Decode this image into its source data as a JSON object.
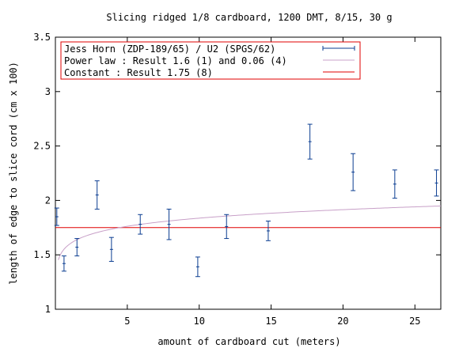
{
  "chart_data": {
    "type": "scatter",
    "title": "Slicing ridged 1/8 cardboard, 1200 DMT, 8/15, 30 g",
    "xlabel": "amount of cardboard cut (meters)",
    "ylabel": "length of edge to slice cord (cm x 100)",
    "xlim": [
      0,
      26.8
    ],
    "ylim": [
      1,
      3.5
    ],
    "xticks": [
      5,
      10,
      15,
      20,
      25
    ],
    "yticks": [
      1,
      1.5,
      2,
      2.5,
      3,
      3.5
    ],
    "xtick_labels": [
      "5",
      "10",
      "15",
      "20",
      "25"
    ],
    "ytick_labels": [
      "1",
      "1.5",
      "2",
      "2.5",
      "3",
      "3.5"
    ],
    "grid": false,
    "legend_position": "top-left",
    "series": [
      {
        "name": "Jess Horn (ZDP-189/65) / U2 (SPGS/62)",
        "kind": "errorbars",
        "color": "#0b3d91",
        "points": [
          {
            "x": 0.1,
            "y": 1.85,
            "yerr": 0.08
          },
          {
            "x": 0.6,
            "y": 1.42,
            "yerr": 0.07
          },
          {
            "x": 1.5,
            "y": 1.57,
            "yerr": 0.08
          },
          {
            "x": 2.9,
            "y": 2.05,
            "yerr": 0.13
          },
          {
            "x": 3.9,
            "y": 1.55,
            "yerr": 0.11
          },
          {
            "x": 5.9,
            "y": 1.78,
            "yerr": 0.09
          },
          {
            "x": 7.9,
            "y": 1.78,
            "yerr": 0.14
          },
          {
            "x": 9.9,
            "y": 1.39,
            "yerr": 0.09
          },
          {
            "x": 11.9,
            "y": 1.76,
            "yerr": 0.11
          },
          {
            "x": 14.8,
            "y": 1.72,
            "yerr": 0.09
          },
          {
            "x": 17.7,
            "y": 2.54,
            "yerr": 0.16
          },
          {
            "x": 20.7,
            "y": 2.26,
            "yerr": 0.17
          },
          {
            "x": 23.6,
            "y": 2.15,
            "yerr": 0.13
          },
          {
            "x": 26.5,
            "y": 2.16,
            "yerr": 0.12
          }
        ]
      },
      {
        "name": "Power law : Result 1.6  (1) and 0.06 (4)",
        "kind": "line",
        "color": "#c8a0c8",
        "function": {
          "a": 1.6,
          "b": 0.06
        }
      },
      {
        "name": "Constant  : Result 1.75 (8)",
        "kind": "hline",
        "color": "#e00000",
        "value": 1.75
      }
    ],
    "legend_frame_color": "#e00000"
  }
}
